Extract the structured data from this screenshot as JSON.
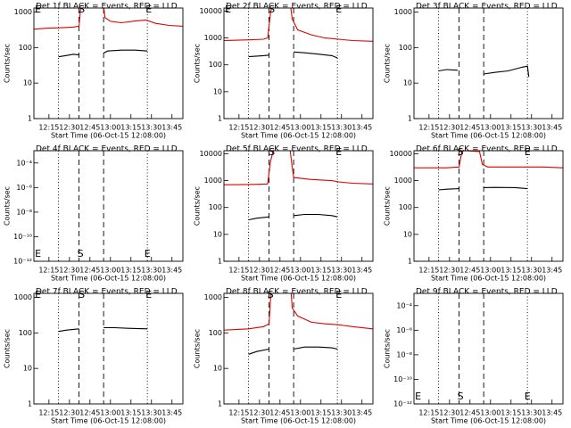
{
  "chart_data": [
    {
      "type": "line",
      "title": "Det 1f BLACK = Events, RED = LLD",
      "ylabel": "Counts/sec",
      "xlabel": "Start Time (06-Oct-15 12:08:00)",
      "log_y": true,
      "xlim": [
        -4,
        105
      ],
      "ylim": [
        1,
        1300
      ],
      "yticks": [
        1,
        10,
        100,
        1000
      ],
      "xticks": [
        {
          "value": 7,
          "label": "12:15"
        },
        {
          "value": 22,
          "label": "12:30"
        },
        {
          "value": 37,
          "label": "12:45"
        },
        {
          "value": 52,
          "label": "13:00"
        },
        {
          "value": 67,
          "label": "13:15"
        },
        {
          "value": 82,
          "label": "13:30"
        },
        {
          "value": 97,
          "label": "13:45"
        }
      ],
      "vlines": [
        {
          "x": 14,
          "style": "dotted"
        },
        {
          "x": 29,
          "style": "dashed"
        },
        {
          "x": 47,
          "style": "dashed"
        },
        {
          "x": 79,
          "style": "dotted"
        }
      ],
      "annotation_position": "top",
      "annotations": [
        {
          "text": "E",
          "x": -1
        },
        {
          "text": "S",
          "x": 31
        },
        {
          "text": "E",
          "x": 80
        }
      ],
      "series": [
        {
          "color": "#e00000",
          "x": [
            -4,
            5,
            15,
            25,
            29,
            31,
            46,
            48,
            52,
            60,
            70,
            78,
            85,
            95,
            105
          ],
          "values": [
            330,
            350,
            360,
            380,
            400,
            3000,
            3000,
            700,
            550,
            500,
            560,
            600,
            480,
            420,
            400
          ]
        },
        {
          "color": "#000000",
          "x": [
            14,
            20,
            25,
            29,
            30,
            47,
            50,
            60,
            70,
            79
          ],
          "values": [
            55,
            60,
            65,
            62,
            null,
            70,
            80,
            85,
            85,
            80
          ]
        }
      ]
    },
    {
      "type": "line",
      "title": "Det 2f BLACK = Events, RED = LLD",
      "ylabel": "Counts/sec",
      "xlabel": "Start Time (06-Oct-15 12:08:00)",
      "log_y": true,
      "xlim": [
        -4,
        105
      ],
      "ylim": [
        1,
        13000
      ],
      "yticks": [
        1,
        10,
        100,
        1000,
        10000
      ],
      "xticks": [
        {
          "value": 7,
          "label": "12:15"
        },
        {
          "value": 22,
          "label": "12:30"
        },
        {
          "value": 37,
          "label": "12:45"
        },
        {
          "value": 52,
          "label": "13:00"
        },
        {
          "value": 67,
          "label": "13:15"
        },
        {
          "value": 82,
          "label": "13:30"
        },
        {
          "value": 97,
          "label": "13:45"
        }
      ],
      "vlines": [
        {
          "x": 14,
          "style": "dotted"
        },
        {
          "x": 29,
          "style": "dashed"
        },
        {
          "x": 47,
          "style": "dashed"
        },
        {
          "x": 79,
          "style": "dotted"
        }
      ],
      "annotation_position": "top",
      "annotations": [
        {
          "text": "E",
          "x": -1
        },
        {
          "text": "S",
          "x": 31
        },
        {
          "text": "E",
          "x": 80
        }
      ],
      "series": [
        {
          "color": "#e00000",
          "x": [
            -4,
            14,
            25,
            28,
            30,
            32,
            44,
            46,
            50,
            60,
            70,
            80,
            90,
            105
          ],
          "values": [
            800,
            850,
            900,
            1000,
            8000,
            30000,
            30000,
            5000,
            2000,
            1300,
            1000,
            900,
            800,
            750
          ]
        },
        {
          "color": "#000000",
          "x": [
            14,
            25,
            29,
            30,
            47,
            55,
            65,
            75,
            79
          ],
          "values": [
            200,
            220,
            230,
            null,
            300,
            280,
            250,
            220,
            180
          ]
        }
      ]
    },
    {
      "type": "line",
      "title": "Det 3f BLACK = Events, RED = LLD",
      "ylabel": "Counts/sec",
      "xlabel": "Start Time (06-Oct-15 12:08:00)",
      "log_y": true,
      "xlim": [
        -4,
        105
      ],
      "ylim": [
        1,
        1300
      ],
      "yticks": [
        1,
        10,
        100,
        1000
      ],
      "xticks": [
        {
          "value": 7,
          "label": "12:15"
        },
        {
          "value": 22,
          "label": "12:30"
        },
        {
          "value": 37,
          "label": "12:45"
        },
        {
          "value": 52,
          "label": "13:00"
        },
        {
          "value": 67,
          "label": "13:15"
        },
        {
          "value": 82,
          "label": "13:30"
        },
        {
          "value": 97,
          "label": "13:45"
        }
      ],
      "vlines": [
        {
          "x": 14,
          "style": "dotted"
        },
        {
          "x": 29,
          "style": "dashed"
        },
        {
          "x": 47,
          "style": "dashed"
        },
        {
          "x": 79,
          "style": "dotted"
        }
      ],
      "annotation_position": "top",
      "annotations": [],
      "series": [
        {
          "color": "#000000",
          "x": [
            14,
            20,
            28,
            29,
            47,
            55,
            65,
            75,
            79,
            80
          ],
          "values": [
            22,
            24,
            23,
            null,
            18,
            20,
            22,
            28,
            30,
            15
          ]
        }
      ]
    },
    {
      "type": "line",
      "title": "Det 4f BLACK = Events, RED = LLD",
      "ylabel": "Counts/sec",
      "xlabel": "Start Time (06-Oct-15 12:08:00)",
      "log_y": true,
      "xlim": [
        -4,
        105
      ],
      "ylim": [
        1e-12,
        0.001
      ],
      "yticks": [
        {
          "value": 1e-12,
          "label": "10⁻¹²"
        },
        {
          "value": 1e-10,
          "label": "10⁻¹⁰"
        },
        {
          "value": 1e-08,
          "label": "10⁻⁸"
        },
        {
          "value": 1e-06,
          "label": "10⁻⁶"
        },
        {
          "value": 0.0001,
          "label": "10⁻⁴"
        }
      ],
      "xticks": [
        {
          "value": 7,
          "label": "12:15"
        },
        {
          "value": 22,
          "label": "12:30"
        },
        {
          "value": 37,
          "label": "12:45"
        },
        {
          "value": 52,
          "label": "13:00"
        },
        {
          "value": 67,
          "label": "13:15"
        },
        {
          "value": 82,
          "label": "13:30"
        },
        {
          "value": 97,
          "label": "13:45"
        }
      ],
      "vlines": [
        {
          "x": 14,
          "style": "dotted"
        },
        {
          "x": 29,
          "style": "dashed"
        },
        {
          "x": 47,
          "style": "dashed"
        },
        {
          "x": 79,
          "style": "dotted"
        }
      ],
      "annotation_position": "bottom",
      "annotations": [
        {
          "text": "E",
          "x": -1
        },
        {
          "text": "S",
          "x": 30
        },
        {
          "text": "E",
          "x": 79
        }
      ],
      "series": []
    },
    {
      "type": "line",
      "title": "Det 5f BLACK = Events, RED = LLD",
      "ylabel": "Counts/sec",
      "xlabel": "Start Time (06-Oct-15 12:08:00)",
      "log_y": true,
      "xlim": [
        -4,
        105
      ],
      "ylim": [
        1,
        13000
      ],
      "yticks": [
        1,
        10,
        100,
        1000,
        10000
      ],
      "xticks": [
        {
          "value": 7,
          "label": "12:15"
        },
        {
          "value": 22,
          "label": "12:30"
        },
        {
          "value": 37,
          "label": "12:45"
        },
        {
          "value": 52,
          "label": "13:00"
        },
        {
          "value": 67,
          "label": "13:15"
        },
        {
          "value": 82,
          "label": "13:30"
        },
        {
          "value": 97,
          "label": "13:45"
        }
      ],
      "vlines": [
        {
          "x": 14,
          "style": "dotted"
        },
        {
          "x": 29,
          "style": "dashed"
        },
        {
          "x": 47,
          "style": "dashed"
        },
        {
          "x": 79,
          "style": "dotted"
        }
      ],
      "annotation_position": "top",
      "annotations": [
        {
          "text": "S",
          "x": 31
        },
        {
          "text": "E",
          "x": 80
        }
      ],
      "series": [
        {
          "color": "#e00000",
          "x": [
            -4,
            15,
            28,
            30,
            33,
            44,
            47,
            60,
            75,
            80,
            90,
            105
          ],
          "values": [
            700,
            720,
            750,
            5000,
            20000,
            20000,
            1300,
            1100,
            1000,
            900,
            800,
            750
          ]
        },
        {
          "color": "#000000",
          "x": [
            14,
            20,
            29,
            30,
            47,
            55,
            65,
            75,
            79
          ],
          "values": [
            35,
            40,
            45,
            null,
            50,
            55,
            55,
            50,
            45
          ]
        }
      ]
    },
    {
      "type": "line",
      "title": "Det 6f BLACK = Events, RED = LLD",
      "ylabel": "Counts/sec",
      "xlabel": "Start Time (06-Oct-15 12:08:00)",
      "log_y": true,
      "xlim": [
        -4,
        105
      ],
      "ylim": [
        1,
        13000
      ],
      "yticks": [
        1,
        10,
        100,
        1000,
        10000
      ],
      "xticks": [
        {
          "value": 7,
          "label": "12:15"
        },
        {
          "value": 22,
          "label": "12:30"
        },
        {
          "value": 37,
          "label": "12:45"
        },
        {
          "value": 52,
          "label": "13:00"
        },
        {
          "value": 67,
          "label": "13:15"
        },
        {
          "value": 82,
          "label": "13:30"
        },
        {
          "value": 97,
          "label": "13:45"
        }
      ],
      "vlines": [
        {
          "x": 14,
          "style": "dotted"
        },
        {
          "x": 29,
          "style": "dashed"
        },
        {
          "x": 47,
          "style": "dashed"
        },
        {
          "x": 79,
          "style": "dotted"
        }
      ],
      "annotation_position": "top",
      "annotations": [
        {
          "text": "S",
          "x": 30
        },
        {
          "text": "E",
          "x": 79
        }
      ],
      "series": [
        {
          "color": "#e00000",
          "x": [
            -4,
            20,
            29,
            31,
            33,
            44,
            46,
            50,
            70,
            90,
            105
          ],
          "values": [
            3000,
            3000,
            3200,
            12000,
            13000,
            12000,
            4000,
            3200,
            3200,
            3200,
            3000
          ]
        },
        {
          "color": "#000000",
          "x": [
            14,
            20,
            29,
            30,
            47,
            55,
            70,
            79
          ],
          "values": [
            450,
            480,
            500,
            null,
            550,
            560,
            550,
            500
          ]
        }
      ]
    },
    {
      "type": "line",
      "title": "Det 7f BLACK = Events, RED = LLD",
      "ylabel": "Counts/sec",
      "xlabel": "Start Time (06-Oct-15 12:08:00)",
      "log_y": true,
      "xlim": [
        -4,
        105
      ],
      "ylim": [
        1,
        1300
      ],
      "yticks": [
        1,
        10,
        100,
        1000
      ],
      "xticks": [
        {
          "value": 7,
          "label": "12:15"
        },
        {
          "value": 22,
          "label": "12:30"
        },
        {
          "value": 37,
          "label": "12:45"
        },
        {
          "value": 52,
          "label": "13:00"
        },
        {
          "value": 67,
          "label": "13:15"
        },
        {
          "value": 82,
          "label": "13:30"
        },
        {
          "value": 97,
          "label": "13:45"
        }
      ],
      "vlines": [
        {
          "x": 14,
          "style": "dotted"
        },
        {
          "x": 29,
          "style": "dashed"
        },
        {
          "x": 47,
          "style": "dashed"
        },
        {
          "x": 79,
          "style": "dotted"
        }
      ],
      "annotation_position": "top",
      "annotations": [
        {
          "text": "E",
          "x": -1
        },
        {
          "text": "S",
          "x": 31
        },
        {
          "text": "E",
          "x": 80
        }
      ],
      "series": [
        {
          "color": "#000000",
          "x": [
            14,
            20,
            29,
            30,
            47,
            55,
            65,
            79
          ],
          "values": [
            110,
            120,
            130,
            null,
            140,
            140,
            135,
            130
          ]
        }
      ]
    },
    {
      "type": "line",
      "title": "Det 8f BLACK = Events, RED = LLD",
      "ylabel": "Counts/sec",
      "xlabel": "Start Time (06-Oct-15 12:08:00)",
      "log_y": true,
      "xlim": [
        -4,
        105
      ],
      "ylim": [
        1,
        1300
      ],
      "yticks": [
        1,
        10,
        100,
        1000
      ],
      "xticks": [
        {
          "value": 7,
          "label": "12:15"
        },
        {
          "value": 22,
          "label": "12:30"
        },
        {
          "value": 37,
          "label": "12:45"
        },
        {
          "value": 52,
          "label": "13:00"
        },
        {
          "value": 67,
          "label": "13:15"
        },
        {
          "value": 82,
          "label": "13:30"
        },
        {
          "value": 97,
          "label": "13:45"
        }
      ],
      "vlines": [
        {
          "x": 14,
          "style": "dotted"
        },
        {
          "x": 29,
          "style": "dashed"
        },
        {
          "x": 47,
          "style": "dashed"
        },
        {
          "x": 79,
          "style": "dotted"
        }
      ],
      "annotation_position": "top",
      "annotations": [
        {
          "text": "S",
          "x": 30
        },
        {
          "text": "E",
          "x": 80
        }
      ],
      "series": [
        {
          "color": "#e00000",
          "x": [
            -4,
            14,
            25,
            29,
            30,
            32,
            44,
            46,
            50,
            60,
            70,
            80,
            90,
            105
          ],
          "values": [
            120,
            130,
            150,
            180,
            800,
            5000,
            5000,
            500,
            300,
            200,
            180,
            170,
            150,
            130
          ]
        },
        {
          "color": "#000000",
          "x": [
            14,
            20,
            29,
            30,
            47,
            55,
            65,
            75,
            79
          ],
          "values": [
            25,
            30,
            35,
            null,
            35,
            40,
            40,
            38,
            35
          ]
        }
      ]
    },
    {
      "type": "line",
      "title": "Det 9f BLACK = Events, RED = LLD",
      "ylabel": "Counts/sec",
      "xlabel": "Start Time (06-Oct-15 12:08:00)",
      "log_y": true,
      "xlim": [
        -4,
        105
      ],
      "ylim": [
        1e-12,
        0.001
      ],
      "yticks": [
        {
          "value": 1e-12,
          "label": "10⁻¹²"
        },
        {
          "value": 1e-10,
          "label": "10⁻¹⁰"
        },
        {
          "value": 1e-08,
          "label": "10⁻⁸"
        },
        {
          "value": 1e-06,
          "label": "10⁻⁶"
        },
        {
          "value": 0.0001,
          "label": "10⁻⁴"
        }
      ],
      "xticks": [
        {
          "value": 7,
          "label": "12:15"
        },
        {
          "value": 22,
          "label": "12:30"
        },
        {
          "value": 37,
          "label": "12:45"
        },
        {
          "value": 52,
          "label": "13:00"
        },
        {
          "value": 67,
          "label": "13:15"
        },
        {
          "value": 82,
          "label": "13:30"
        },
        {
          "value": 97,
          "label": "13:45"
        }
      ],
      "vlines": [
        {
          "x": 14,
          "style": "dotted"
        },
        {
          "x": 29,
          "style": "dashed"
        },
        {
          "x": 47,
          "style": "dashed"
        },
        {
          "x": 79,
          "style": "dotted"
        }
      ],
      "annotation_position": "bottom",
      "annotations": [
        {
          "text": "E",
          "x": -1
        },
        {
          "text": "S",
          "x": 30
        },
        {
          "text": "E",
          "x": 79
        }
      ],
      "series": []
    }
  ]
}
